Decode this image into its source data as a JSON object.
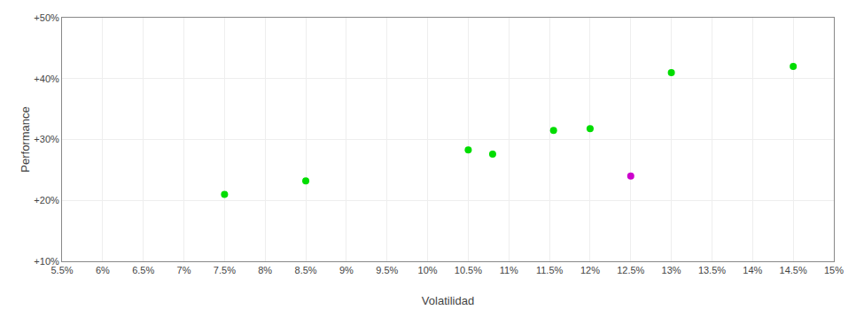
{
  "chart_data": {
    "type": "scatter",
    "xlabel": "Volatilidad",
    "ylabel": "Performance",
    "x": [
      0.075,
      0.085,
      0.105,
      0.108,
      0.1155,
      0.12,
      0.125,
      0.13,
      0.145
    ],
    "values": [
      0.21,
      0.232,
      0.283,
      0.276,
      0.315,
      0.318,
      0.24,
      0.41,
      0.42
    ],
    "colors": [
      "#00dd00",
      "#00dd00",
      "#00dd00",
      "#00dd00",
      "#00dd00",
      "#00dd00",
      "#cc00cc",
      "#00dd00",
      "#00dd00"
    ],
    "marker": "circle",
    "xlim": [
      0.055,
      0.15
    ],
    "ylim": [
      0.1,
      0.5
    ],
    "xticks": [
      {
        "value": 0.055,
        "label": "5.5%"
      },
      {
        "value": 0.06,
        "label": "6%"
      },
      {
        "value": 0.065,
        "label": "6.5%"
      },
      {
        "value": 0.07,
        "label": "7%"
      },
      {
        "value": 0.075,
        "label": "7.5%"
      },
      {
        "value": 0.08,
        "label": "8%"
      },
      {
        "value": 0.085,
        "label": "8.5%"
      },
      {
        "value": 0.09,
        "label": "9%"
      },
      {
        "value": 0.095,
        "label": "9.5%"
      },
      {
        "value": 0.1,
        "label": "10%"
      },
      {
        "value": 0.105,
        "label": "10.5%"
      },
      {
        "value": 0.11,
        "label": "11%"
      },
      {
        "value": 0.115,
        "label": "11.5%"
      },
      {
        "value": 0.12,
        "label": "12%"
      },
      {
        "value": 0.125,
        "label": "12.5%"
      },
      {
        "value": 0.13,
        "label": "13%"
      },
      {
        "value": 0.135,
        "label": "13.5%"
      },
      {
        "value": 0.14,
        "label": "14%"
      },
      {
        "value": 0.145,
        "label": "14.5%"
      },
      {
        "value": 0.15,
        "label": "15%"
      }
    ],
    "yticks": [
      {
        "value": 0.1,
        "label": "+10%"
      },
      {
        "value": 0.2,
        "label": "+20%"
      },
      {
        "value": 0.3,
        "label": "+30%"
      },
      {
        "value": 0.4,
        "label": "+40%"
      },
      {
        "value": 0.5,
        "label": "+50%"
      }
    ],
    "grid": true
  }
}
